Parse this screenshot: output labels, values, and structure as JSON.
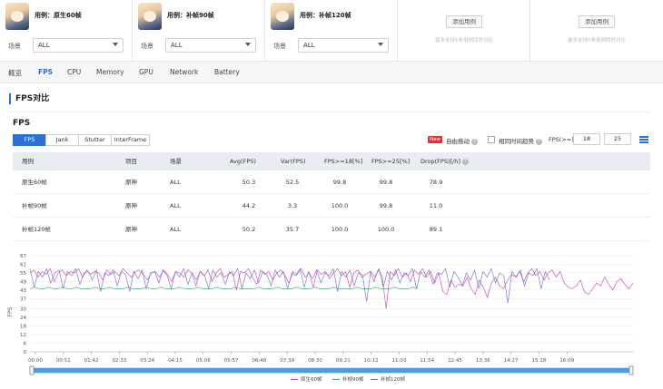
{
  "cases": [
    {
      "name": "用例：原生60帧",
      "scene_label": "场景",
      "scene_value": "ALL"
    },
    {
      "name": "用例：补帧90帧",
      "scene_label": "场景",
      "scene_value": "ALL"
    },
    {
      "name": "用例：补帧120帧",
      "scene_label": "场景",
      "scene_value": "ALL"
    }
  ],
  "add_slots": [
    {
      "button": "添加用例",
      "note": "最多支持5条用例同时对比"
    },
    {
      "button": "添加用例",
      "note": "最多支持5条用例同时对比"
    }
  ],
  "tabs": [
    "概览",
    "FPS",
    "CPU",
    "Memory",
    "GPU",
    "Network",
    "Battery"
  ],
  "active_tab": "FPS",
  "section_title": "FPS对比",
  "fps_title": "FPS",
  "subtabs": [
    "FPS",
    "Jank",
    "Stutter",
    "InterFrame"
  ],
  "active_subtab": "FPS",
  "controls": {
    "new_badge": "New",
    "free_drag": "自由拖动",
    "same_time_trend": "相同时间趋势",
    "fps_ge": "FPS(>=)",
    "fps_ge_value_1": "18",
    "fps_ge_value_2": "25",
    "help": "?"
  },
  "table": {
    "headers": [
      "用例",
      "项目",
      "场景",
      "Avg(FPS)",
      "Var(FPS)",
      "FPS>=18[%]",
      "FPS>=25[%]",
      "Drop(FPS)[/h]"
    ],
    "rows": [
      [
        "原生60帧",
        "原神",
        "ALL",
        "50.3",
        "52.5",
        "99.8",
        "99.8",
        "78.9"
      ],
      [
        "补帧90帧",
        "原神",
        "ALL",
        "44.2",
        "3.3",
        "100.0",
        "99.8",
        "11.0"
      ],
      [
        "补帧120帧",
        "原神",
        "ALL",
        "50.2",
        "35.7",
        "100.0",
        "100.0",
        "89.1"
      ]
    ]
  },
  "chart_data": {
    "type": "line",
    "ylabel": "FPS",
    "yticks": [
      0,
      6,
      12,
      18,
      24,
      30,
      37,
      43,
      49,
      55,
      61,
      67
    ],
    "ylim": [
      0,
      67
    ],
    "xticks": [
      "00:00",
      "00:51",
      "01:42",
      "02:33",
      "03:24",
      "04:15",
      "05:06",
      "05:57",
      "06:48",
      "07:39",
      "08:30",
      "09:21",
      "10:12",
      "11:03",
      "11:54",
      "12:45",
      "13:36",
      "14:27",
      "15:18",
      "16:09"
    ],
    "grid": true,
    "legend_position": "bottom-right",
    "series": [
      {
        "name": "原生60帧",
        "color": "#d63fb6",
        "values": [
          55,
          57,
          52,
          56,
          54,
          58,
          49,
          55,
          57,
          53,
          56,
          55,
          58,
          52,
          57,
          54,
          56,
          55,
          50,
          57,
          54,
          56,
          53,
          58,
          55,
          52,
          56,
          57,
          54,
          50,
          55,
          56,
          52,
          57,
          54,
          49,
          56,
          55,
          52,
          57,
          55,
          46,
          56,
          53,
          57,
          49,
          55,
          58,
          52,
          54,
          56,
          43,
          56,
          55,
          58,
          52,
          47,
          57,
          54,
          56,
          50,
          55,
          57,
          53,
          48,
          56,
          54,
          58,
          52,
          55,
          45,
          57,
          54,
          56,
          51,
          55,
          58,
          53,
          56,
          45,
          55,
          57,
          52,
          54,
          56,
          49,
          57,
          53,
          30,
          56,
          53,
          58,
          52,
          55,
          49,
          57,
          54,
          58,
          52,
          56,
          48,
          55,
          42,
          40,
          50,
          45,
          47,
          46,
          52,
          44,
          40,
          50,
          45,
          38,
          48,
          52,
          46,
          44,
          50,
          54,
          52,
          56,
          49,
          55,
          58,
          53,
          56,
          50,
          55,
          57,
          52,
          56,
          48,
          45,
          44,
          46,
          50,
          42,
          40,
          44,
          48,
          46,
          52,
          47,
          43,
          49,
          51,
          47,
          44,
          48
        ]
      },
      {
        "name": "补帧90帧",
        "color": "#3aa57a",
        "values": [
          44,
          45,
          44,
          44,
          45,
          44,
          44,
          45,
          44,
          44,
          45,
          44,
          44,
          44,
          45,
          44,
          44,
          45,
          44,
          44,
          44,
          45,
          44,
          44,
          44,
          45,
          44,
          44,
          45,
          44,
          44,
          44,
          45,
          44,
          44,
          44,
          45,
          44,
          44,
          44,
          45,
          44,
          44,
          44,
          45,
          44,
          44,
          44,
          44,
          45,
          44,
          44,
          44,
          45,
          44,
          44,
          44,
          45,
          44,
          44,
          44,
          45,
          44,
          44,
          44,
          45,
          44,
          44,
          44,
          44,
          45,
          44,
          44,
          44,
          45,
          44,
          44,
          44,
          45,
          44,
          44,
          44,
          45,
          44
        ]
      },
      {
        "name": "补帧120帧",
        "color": "#6b73c9",
        "values": [
          58,
          45,
          56,
          52,
          58,
          48,
          55,
          57,
          44,
          56,
          53,
          58,
          47,
          55,
          56,
          50,
          57,
          42,
          55,
          53,
          57,
          46,
          56,
          54,
          42,
          56,
          51,
          57,
          44,
          55,
          56,
          48,
          57,
          53,
          44,
          56,
          52,
          58,
          47,
          55,
          50,
          56,
          53,
          44,
          57,
          52,
          55,
          47,
          56,
          53,
          58,
          44,
          55,
          51,
          57,
          48,
          56,
          54,
          46,
          57,
          52,
          56,
          44,
          55,
          53,
          58,
          45,
          56,
          51,
          57,
          48,
          55,
          53,
          58,
          42,
          56,
          52,
          57,
          46,
          55,
          54,
          35,
          56,
          52,
          58,
          45,
          56,
          50,
          57,
          48,
          55,
          53,
          58,
          44,
          56,
          52,
          57,
          47,
          55,
          54,
          58,
          45,
          56,
          52,
          46,
          55,
          50,
          57,
          44,
          56,
          52,
          58,
          48,
          55,
          53,
          34,
          56,
          52,
          57,
          46,
          55,
          53,
          58,
          44,
          56,
          50
        ]
      }
    ]
  }
}
